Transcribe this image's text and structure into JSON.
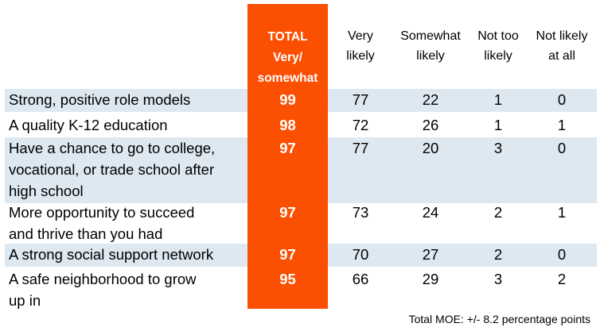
{
  "chart_data": {
    "type": "table",
    "columns": [
      {
        "key": "total",
        "label_lines": [
          "TOTAL",
          "Very/",
          "somewhat"
        ]
      },
      {
        "key": "very",
        "label_lines": [
          "Very",
          "likely"
        ]
      },
      {
        "key": "somewhat",
        "label_lines": [
          "Somewhat",
          "likely"
        ]
      },
      {
        "key": "nottoo",
        "label_lines": [
          "Not too",
          "likely"
        ]
      },
      {
        "key": "notatall",
        "label_lines": [
          "Not likely",
          "at all"
        ]
      }
    ],
    "rows": [
      {
        "label_lines": [
          "Strong, positive role models"
        ],
        "total": 99,
        "values": [
          77,
          22,
          1,
          0
        ],
        "shaded": true
      },
      {
        "label_lines": [
          "A quality K-12 education"
        ],
        "total": 98,
        "values": [
          72,
          26,
          1,
          1
        ],
        "shaded": false
      },
      {
        "label_lines": [
          "Have a chance to go to college,",
          "vocational, or trade school after",
          "high school"
        ],
        "total": 97,
        "values": [
          77,
          20,
          3,
          0
        ],
        "shaded": true
      },
      {
        "label_lines": [
          "More opportunity to succeed",
          "and thrive than you had"
        ],
        "total": 97,
        "values": [
          73,
          24,
          2,
          1
        ],
        "shaded": false
      },
      {
        "label_lines": [
          "A strong social support network"
        ],
        "total": 97,
        "values": [
          70,
          27,
          2,
          0
        ],
        "shaded": true
      },
      {
        "label_lines": [
          "A safe neighborhood to grow",
          "up in"
        ],
        "total": 95,
        "values": [
          66,
          29,
          3,
          2
        ],
        "shaded": false
      }
    ],
    "footnote": "Total MOE: +/- 8.2 percentage points"
  },
  "colors": {
    "accent": "#fb4f01",
    "band": "#dde8f1",
    "text": "#000000"
  }
}
